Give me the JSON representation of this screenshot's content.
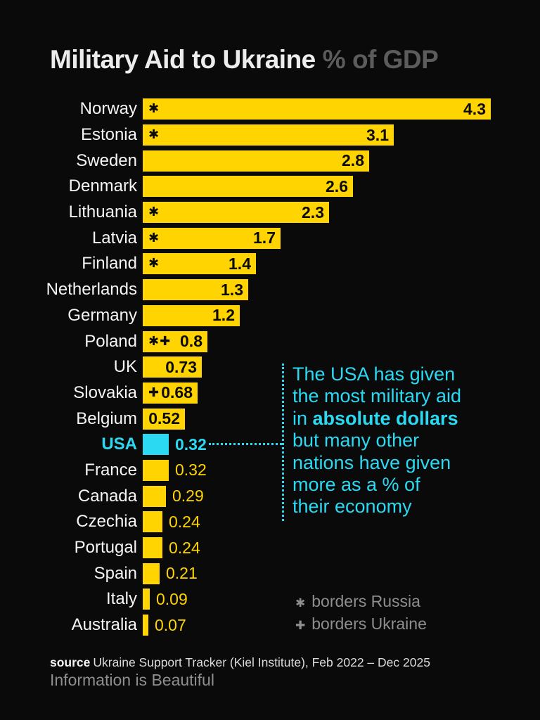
{
  "title": {
    "main": "Military Aid to Ukraine",
    "suffix": "% of GDP"
  },
  "colors": {
    "background": "#0A0A0A",
    "bar_yellow": "#FFD400",
    "highlight_cyan": "#2BD9F2",
    "label_white": "#F5F5F5",
    "muted_gray": "#8E8E8E"
  },
  "chart_data": {
    "type": "bar",
    "orientation": "horizontal",
    "title": "Military Aid to Ukraine",
    "subtitle": "% of GDP",
    "xlabel": "",
    "ylabel": "",
    "xlim": [
      0,
      4.3
    ],
    "grid": false,
    "axes_shown": false,
    "categories": [
      "Norway",
      "Estonia",
      "Sweden",
      "Denmark",
      "Lithuania",
      "Latvia",
      "Finland",
      "Netherlands",
      "Germany",
      "Poland",
      "UK",
      "Slovakia",
      "Belgium",
      "USA",
      "France",
      "Canada",
      "Czechia",
      "Portugal",
      "Spain",
      "Italy",
      "Australia"
    ],
    "values": [
      4.3,
      3.1,
      2.8,
      2.6,
      2.3,
      1.7,
      1.4,
      1.3,
      1.2,
      0.8,
      0.73,
      0.68,
      0.52,
      0.32,
      0.32,
      0.29,
      0.24,
      0.24,
      0.21,
      0.09,
      0.07
    ],
    "value_labels": [
      "4.3",
      "3.1",
      "2.8",
      "2.6",
      "2.3",
      "1.7",
      "1.4",
      "1.3",
      "1.2",
      "0.8",
      "0.73",
      "0.68",
      "0.52",
      "0.32",
      "0.32",
      "0.29",
      "0.24",
      "0.24",
      "0.21",
      "0.09",
      "0.07"
    ],
    "markers": [
      "✱",
      "✱",
      "",
      "",
      "✱",
      "✱",
      "✱",
      "",
      "",
      "✱✚",
      "",
      "✚",
      "",
      "",
      "",
      "",
      "",
      "",
      "",
      "",
      ""
    ],
    "marker_key": {
      "✱": "borders Russia",
      "✚": "borders Ukraine"
    },
    "highlight_index": 13,
    "bar_color": "#FFD400",
    "highlight_color": "#2BD9F2"
  },
  "annotation": {
    "lines": [
      "The USA has given",
      "the most military aid",
      "in **absolute dollars**",
      "but many other",
      "nations have given",
      "more as a % of",
      "their economy"
    ]
  },
  "legend": {
    "items": [
      {
        "symbol": "✱",
        "label": "borders Russia"
      },
      {
        "symbol": "✚",
        "label": "borders Ukraine"
      }
    ]
  },
  "footer": {
    "source_label": "source",
    "source_text": "Ukraine Support Tracker (Kiel Institute), Feb 2022 – Dec 2025",
    "credit": "Information is Beautiful"
  }
}
